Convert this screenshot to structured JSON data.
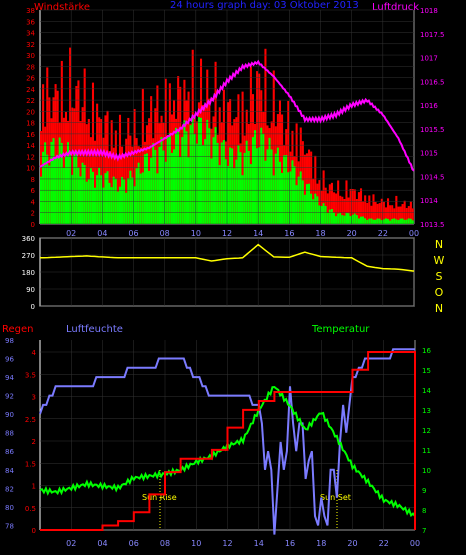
{
  "page_title": "24 hours graph day: 03 Oktober 2013",
  "colors": {
    "background": "#000000",
    "wind": "#ff0000",
    "gust": "#00ff00",
    "pressure": "#ff00ff",
    "direction": "#ffff00",
    "rain": "#ff0000",
    "humidity": "#7b7bff",
    "temperature": "#00ff00",
    "axis": "#ffffff",
    "grid": "#333333"
  },
  "chart_data": [
    {
      "type": "bar",
      "title": "24 hours graph day: 03 Oktober 2013",
      "left_label": "Windstärke",
      "right_label": "Luftdruck",
      "x_ticks": [
        "02",
        "04",
        "06",
        "08",
        "10",
        "12",
        "14",
        "16",
        "18",
        "20",
        "22",
        "00"
      ],
      "y_left_ticks": [
        "0",
        "2",
        "4",
        "6",
        "8",
        "10",
        "12",
        "14",
        "16",
        "18",
        "20",
        "22",
        "24",
        "26",
        "28",
        "30",
        "32",
        "34",
        "36",
        "38"
      ],
      "y_left_lim": [
        0,
        38
      ],
      "y_right_ticks": [
        "1013.5",
        "1014",
        "1014.5",
        "1015",
        "1015.5",
        "1016",
        "1016.5",
        "1017",
        "1017.5",
        "1018"
      ],
      "y_right_lim": [
        1013.5,
        1018
      ],
      "x": [
        0,
        1,
        2,
        3,
        4,
        5,
        6,
        7,
        8,
        9,
        10,
        11,
        12,
        13,
        14,
        15,
        16,
        17,
        18,
        19,
        20,
        21,
        22,
        23,
        24
      ],
      "series": [
        {
          "name": "Windstärke",
          "role": "gust bars",
          "color": "#ff0000",
          "values": [
            30,
            30,
            32,
            28,
            24,
            20,
            22,
            26,
            28,
            30,
            32,
            30,
            26,
            26,
            34,
            28,
            22,
            18,
            10,
            8,
            8,
            6,
            5,
            5,
            4
          ]
        },
        {
          "name": "Windstärke",
          "role": "mean bars",
          "color": "#00ff00",
          "values": [
            14,
            16,
            14,
            10,
            10,
            8,
            10,
            14,
            16,
            18,
            20,
            18,
            14,
            14,
            18,
            14,
            12,
            8,
            4,
            2,
            2,
            1,
            1,
            1,
            1
          ]
        },
        {
          "name": "Luftdruck",
          "color": "#ff00ff",
          "values": [
            1014.7,
            1014.9,
            1015.0,
            1015.0,
            1015.0,
            1014.9,
            1015.0,
            1015.1,
            1015.3,
            1015.5,
            1015.8,
            1016.1,
            1016.5,
            1016.8,
            1016.9,
            1016.6,
            1016.2,
            1015.7,
            1015.7,
            1015.8,
            1016.0,
            1016.1,
            1015.8,
            1015.3,
            1014.6
          ]
        }
      ]
    },
    {
      "type": "line",
      "right_labels": [
        "N",
        "W",
        "S",
        "O",
        "N"
      ],
      "y_ticks": [
        "360",
        "270",
        "180",
        "90",
        "0"
      ],
      "y_lim": [
        0,
        360
      ],
      "x": [
        0,
        1,
        2,
        3,
        4,
        5,
        6,
        7,
        8,
        9,
        10,
        11,
        12,
        13,
        14,
        15,
        16,
        17,
        18,
        19,
        20,
        21,
        22,
        23,
        24
      ],
      "series": [
        {
          "name": "wind direction",
          "color": "#ffff00",
          "values": [
            255,
            258,
            262,
            265,
            260,
            255,
            255,
            255,
            255,
            255,
            255,
            238,
            250,
            255,
            325,
            260,
            258,
            285,
            262,
            258,
            255,
            210,
            198,
            195,
            185
          ]
        }
      ]
    },
    {
      "type": "line",
      "label_left": "Regen",
      "label_humidity": "Luftfeuchte",
      "label_right": "Temperatur",
      "annotations": [
        "Sun Rise",
        "Sun Set"
      ],
      "x_ticks": [
        "02",
        "04",
        "06",
        "08",
        "10",
        "12",
        "14",
        "16",
        "18",
        "20",
        "22",
        "00"
      ],
      "y_rain_ticks": [
        "0",
        "0.5",
        "1",
        "1.5",
        "2",
        "2.5",
        "3",
        "3.5",
        "4"
      ],
      "y_rain_lim": [
        0,
        4
      ],
      "y_hum_ticks": [
        "78",
        "80",
        "82",
        "84",
        "86",
        "88",
        "90",
        "92",
        "94",
        "96",
        "98"
      ],
      "y_hum_lim": [
        77.5,
        98
      ],
      "y_temp_ticks": [
        "7",
        "8",
        "9",
        "10",
        "11",
        "12",
        "13",
        "14",
        "15",
        "16"
      ],
      "y_temp_lim": [
        7,
        16.5
      ],
      "x": [
        0,
        1,
        2,
        3,
        4,
        5,
        6,
        7,
        8,
        9,
        10,
        11,
        12,
        13,
        14,
        15,
        16,
        17,
        18,
        19,
        20,
        21,
        22,
        23,
        24
      ],
      "series": [
        {
          "name": "Regen",
          "color": "#ff0000",
          "values": [
            0,
            0,
            0,
            0,
            0.1,
            0.2,
            0.4,
            0.8,
            1.3,
            1.6,
            1.6,
            1.8,
            2.3,
            2.7,
            2.9,
            3.1,
            3.1,
            3.1,
            3.1,
            3.1,
            3.6,
            4.0,
            4.0,
            4.0,
            4.0
          ]
        },
        {
          "name": "Luftfeuchte",
          "color": "#7b7bff",
          "values": [
            90,
            93,
            93,
            93,
            94,
            94,
            95,
            95,
            96,
            96,
            94,
            92,
            92,
            92,
            91,
            80,
            90,
            86,
            78,
            84,
            94,
            96,
            96,
            97,
            97
          ]
        },
        {
          "name": "Temperatur",
          "color": "#00ff00",
          "values": [
            9,
            8.9,
            9.1,
            9.3,
            9.2,
            9.1,
            9.6,
            9.7,
            9.8,
            10.0,
            10.4,
            10.7,
            11.2,
            11.5,
            13.0,
            14.2,
            13.2,
            12.0,
            12.9,
            11.6,
            10.2,
            9.4,
            8.5,
            8.2,
            7.7
          ]
        }
      ]
    }
  ]
}
